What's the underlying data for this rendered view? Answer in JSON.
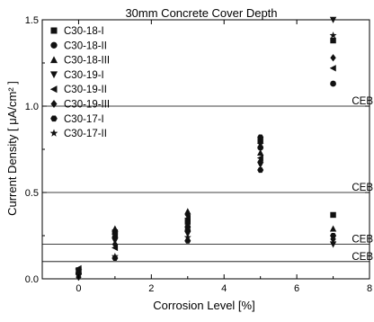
{
  "chart_data": {
    "type": "scatter",
    "title": "30mm Concrete Cover Depth",
    "xlabel": "Corrosion Level [%]",
    "ylabel": "Current Density [ μA/cm² ]",
    "xlim": [
      -1,
      8
    ],
    "ylim": [
      0,
      1.5
    ],
    "x_ticks": [
      0,
      2,
      4,
      6,
      8
    ],
    "x_tick_labels": [
      "0",
      "2",
      "4",
      "6",
      "8"
    ],
    "y_ticks": [
      0.0,
      0.5,
      1.0,
      1.5
    ],
    "y_tick_labels": [
      "0.0",
      "0.5",
      "1.0",
      "1.5"
    ],
    "grid": false,
    "legend_position": "top-left",
    "reference_lines": [
      {
        "y": 1.0,
        "label": "CEB"
      },
      {
        "y": 0.5,
        "label": "CEB"
      },
      {
        "y": 0.2,
        "label": "CEB"
      },
      {
        "y": 0.1,
        "label": "CEB"
      }
    ],
    "series": [
      {
        "name": "C30-18-I",
        "marker": "square",
        "x": [
          0,
          1,
          3,
          5,
          7
        ],
        "y": [
          0.05,
          0.27,
          0.33,
          0.8,
          1.38
        ]
      },
      {
        "name": "C30-18-II",
        "marker": "circle",
        "x": [
          0,
          1,
          3,
          5,
          7
        ],
        "y": [
          0.03,
          0.24,
          0.3,
          0.76,
          1.13
        ]
      },
      {
        "name": "C30-18-III",
        "marker": "triangle-up",
        "x": [
          0,
          1,
          3,
          5,
          7
        ],
        "y": [
          0.04,
          0.29,
          0.39,
          0.73,
          0.29
        ]
      },
      {
        "name": "C30-19-I",
        "marker": "triangle-down",
        "x": [
          0,
          1,
          3,
          5,
          7
        ],
        "y": [
          0.02,
          0.22,
          0.26,
          0.66,
          1.5
        ]
      },
      {
        "name": "C30-19-II",
        "marker": "triangle-left",
        "x": [
          0,
          1,
          3,
          5,
          7
        ],
        "y": [
          0.06,
          0.26,
          0.35,
          0.7,
          1.22
        ]
      },
      {
        "name": "C30-19-III",
        "marker": "diamond",
        "x": [
          0,
          1,
          3,
          5,
          7
        ],
        "y": [
          0.01,
          0.2,
          0.37,
          0.68,
          1.28
        ]
      },
      {
        "name": "C30-17-I",
        "marker": "hexagon",
        "x": [
          0,
          1,
          3,
          5,
          7
        ],
        "y": [
          0.03,
          0.12,
          0.22,
          0.63,
          0.25
        ]
      },
      {
        "name": "C30-17-II",
        "marker": "star",
        "x": [
          0,
          1,
          3,
          5,
          7
        ],
        "y": [
          0.05,
          0.13,
          0.24,
          0.78,
          1.41
        ]
      }
    ],
    "extra_points": [
      {
        "x": 7,
        "y": 0.37,
        "marker": "square"
      },
      {
        "x": 7,
        "y": 0.2,
        "marker": "triangle-down"
      },
      {
        "x": 7,
        "y": 0.23,
        "marker": "diamond"
      },
      {
        "x": 5,
        "y": 0.82,
        "marker": "hexagon"
      },
      {
        "x": 3,
        "y": 0.28,
        "marker": "circle"
      },
      {
        "x": 1,
        "y": 0.18,
        "marker": "triangle-left"
      }
    ]
  }
}
